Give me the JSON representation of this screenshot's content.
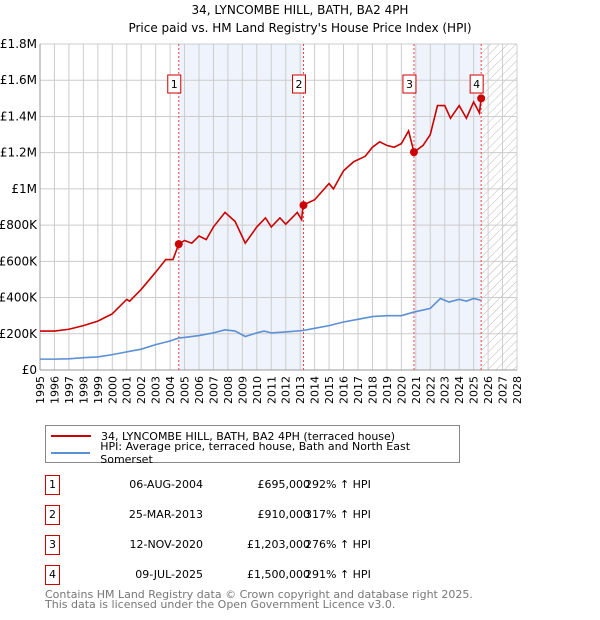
{
  "chart_data": {
    "type": "line",
    "title": "34, LYNCOMBE HILL, BATH, BA2 4PH",
    "subtitle": "Price paid vs. HM Land Registry's House Price Index (HPI)",
    "xlim": [
      1995,
      2028
    ],
    "ylim": [
      0,
      1800000
    ],
    "yticks": [
      {
        "v": 0,
        "label": "£0"
      },
      {
        "v": 200000,
        "label": "£200K"
      },
      {
        "v": 400000,
        "label": "£400K"
      },
      {
        "v": 600000,
        "label": "£600K"
      },
      {
        "v": 800000,
        "label": "£800K"
      },
      {
        "v": 1000000,
        "label": "£1M"
      },
      {
        "v": 1200000,
        "label": "£1.2M"
      },
      {
        "v": 1400000,
        "label": "£1.4M"
      },
      {
        "v": 1600000,
        "label": "£1.6M"
      },
      {
        "v": 1800000,
        "label": "£1.8M"
      }
    ],
    "xticks": [
      "1995",
      "1996",
      "1997",
      "1998",
      "1999",
      "2000",
      "2001",
      "2002",
      "2003",
      "2004",
      "2005",
      "2006",
      "2007",
      "2008",
      "2009",
      "2010",
      "2011",
      "2012",
      "2013",
      "2014",
      "2015",
      "2016",
      "2017",
      "2018",
      "2019",
      "2020",
      "2021",
      "2022",
      "2023",
      "2024",
      "2025",
      "2026",
      "2027",
      "2028"
    ],
    "series": [
      {
        "name": "34, LYNCOMBE HILL, BATH, BA2 4PH (terraced house)",
        "color": "#cc0000",
        "x": [
          1995,
          1996,
          1997,
          1998,
          1999,
          2000,
          2001,
          2001.2,
          2002,
          2003,
          2003.7,
          2004.2,
          2004.6,
          2005,
          2005.5,
          2006,
          2006.5,
          2007,
          2007.8,
          2008.5,
          2009.2,
          2010,
          2010.6,
          2011,
          2011.6,
          2012,
          2012.8,
          2013.1,
          2013.2,
          2014,
          2015,
          2015.3,
          2016,
          2016.7,
          2017.5,
          2018,
          2018.5,
          2019,
          2019.5,
          2020,
          2020.5,
          2020.87,
          2021.5,
          2022,
          2022.5,
          2023,
          2023.4,
          2024,
          2024.5,
          2025,
          2025.4,
          2025.52
        ],
        "y": [
          215000,
          215000,
          225000,
          245000,
          270000,
          310000,
          390000,
          380000,
          445000,
          540000,
          610000,
          610000,
          695000,
          715000,
          700000,
          740000,
          720000,
          790000,
          870000,
          820000,
          700000,
          790000,
          840000,
          790000,
          840000,
          805000,
          870000,
          830000,
          910000,
          940000,
          1030000,
          1000000,
          1100000,
          1150000,
          1180000,
          1230000,
          1260000,
          1240000,
          1230000,
          1250000,
          1320000,
          1203000,
          1240000,
          1300000,
          1460000,
          1460000,
          1390000,
          1460000,
          1390000,
          1480000,
          1420000,
          1500000
        ]
      },
      {
        "name": "HPI: Average price, terraced house, Bath and North East Somerset",
        "color": "#5b8fd6",
        "x": [
          1995,
          1996,
          1997,
          1998,
          1999,
          2000,
          2001,
          2002,
          2003,
          2004,
          2004.6,
          2005,
          2006,
          2007,
          2007.8,
          2008.5,
          2009.2,
          2010,
          2010.5,
          2011,
          2012,
          2013.2,
          2014,
          2015,
          2016,
          2017,
          2018,
          2019,
          2020,
          2020.87,
          2022,
          2022.7,
          2023.3,
          2024,
          2024.5,
          2025,
          2025.5
        ],
        "y": [
          60000,
          60000,
          62000,
          68000,
          72000,
          85000,
          100000,
          115000,
          140000,
          160000,
          177000,
          180000,
          190000,
          205000,
          222000,
          215000,
          185000,
          205000,
          215000,
          205000,
          210000,
          218000,
          230000,
          245000,
          265000,
          280000,
          295000,
          300000,
          300000,
          320000,
          340000,
          395000,
          375000,
          390000,
          380000,
          395000,
          385000
        ]
      }
    ],
    "sales": [
      {
        "n": "1",
        "x": 2004.6,
        "y": 695000,
        "date": "06-AUG-2004",
        "price": "£695,000",
        "hpi": "292% ↑ HPI"
      },
      {
        "n": "2",
        "x": 2013.23,
        "y": 910000,
        "date": "25-MAR-2013",
        "price": "£910,000",
        "hpi": "317% ↑ HPI"
      },
      {
        "n": "3",
        "x": 2020.87,
        "y": 1203000,
        "date": "12-NOV-2020",
        "price": "£1,203,000",
        "hpi": "276% ↑ HPI"
      },
      {
        "n": "4",
        "x": 2025.52,
        "y": 1500000,
        "date": "09-JUL-2025",
        "price": "£1,500,000",
        "hpi": "291% ↑ HPI"
      }
    ],
    "legend": "bottom"
  },
  "footer": {
    "line1": "Contains HM Land Registry data © Crown copyright and database right 2025.",
    "line2": "This data is licensed under the Open Government Licence v3.0."
  }
}
